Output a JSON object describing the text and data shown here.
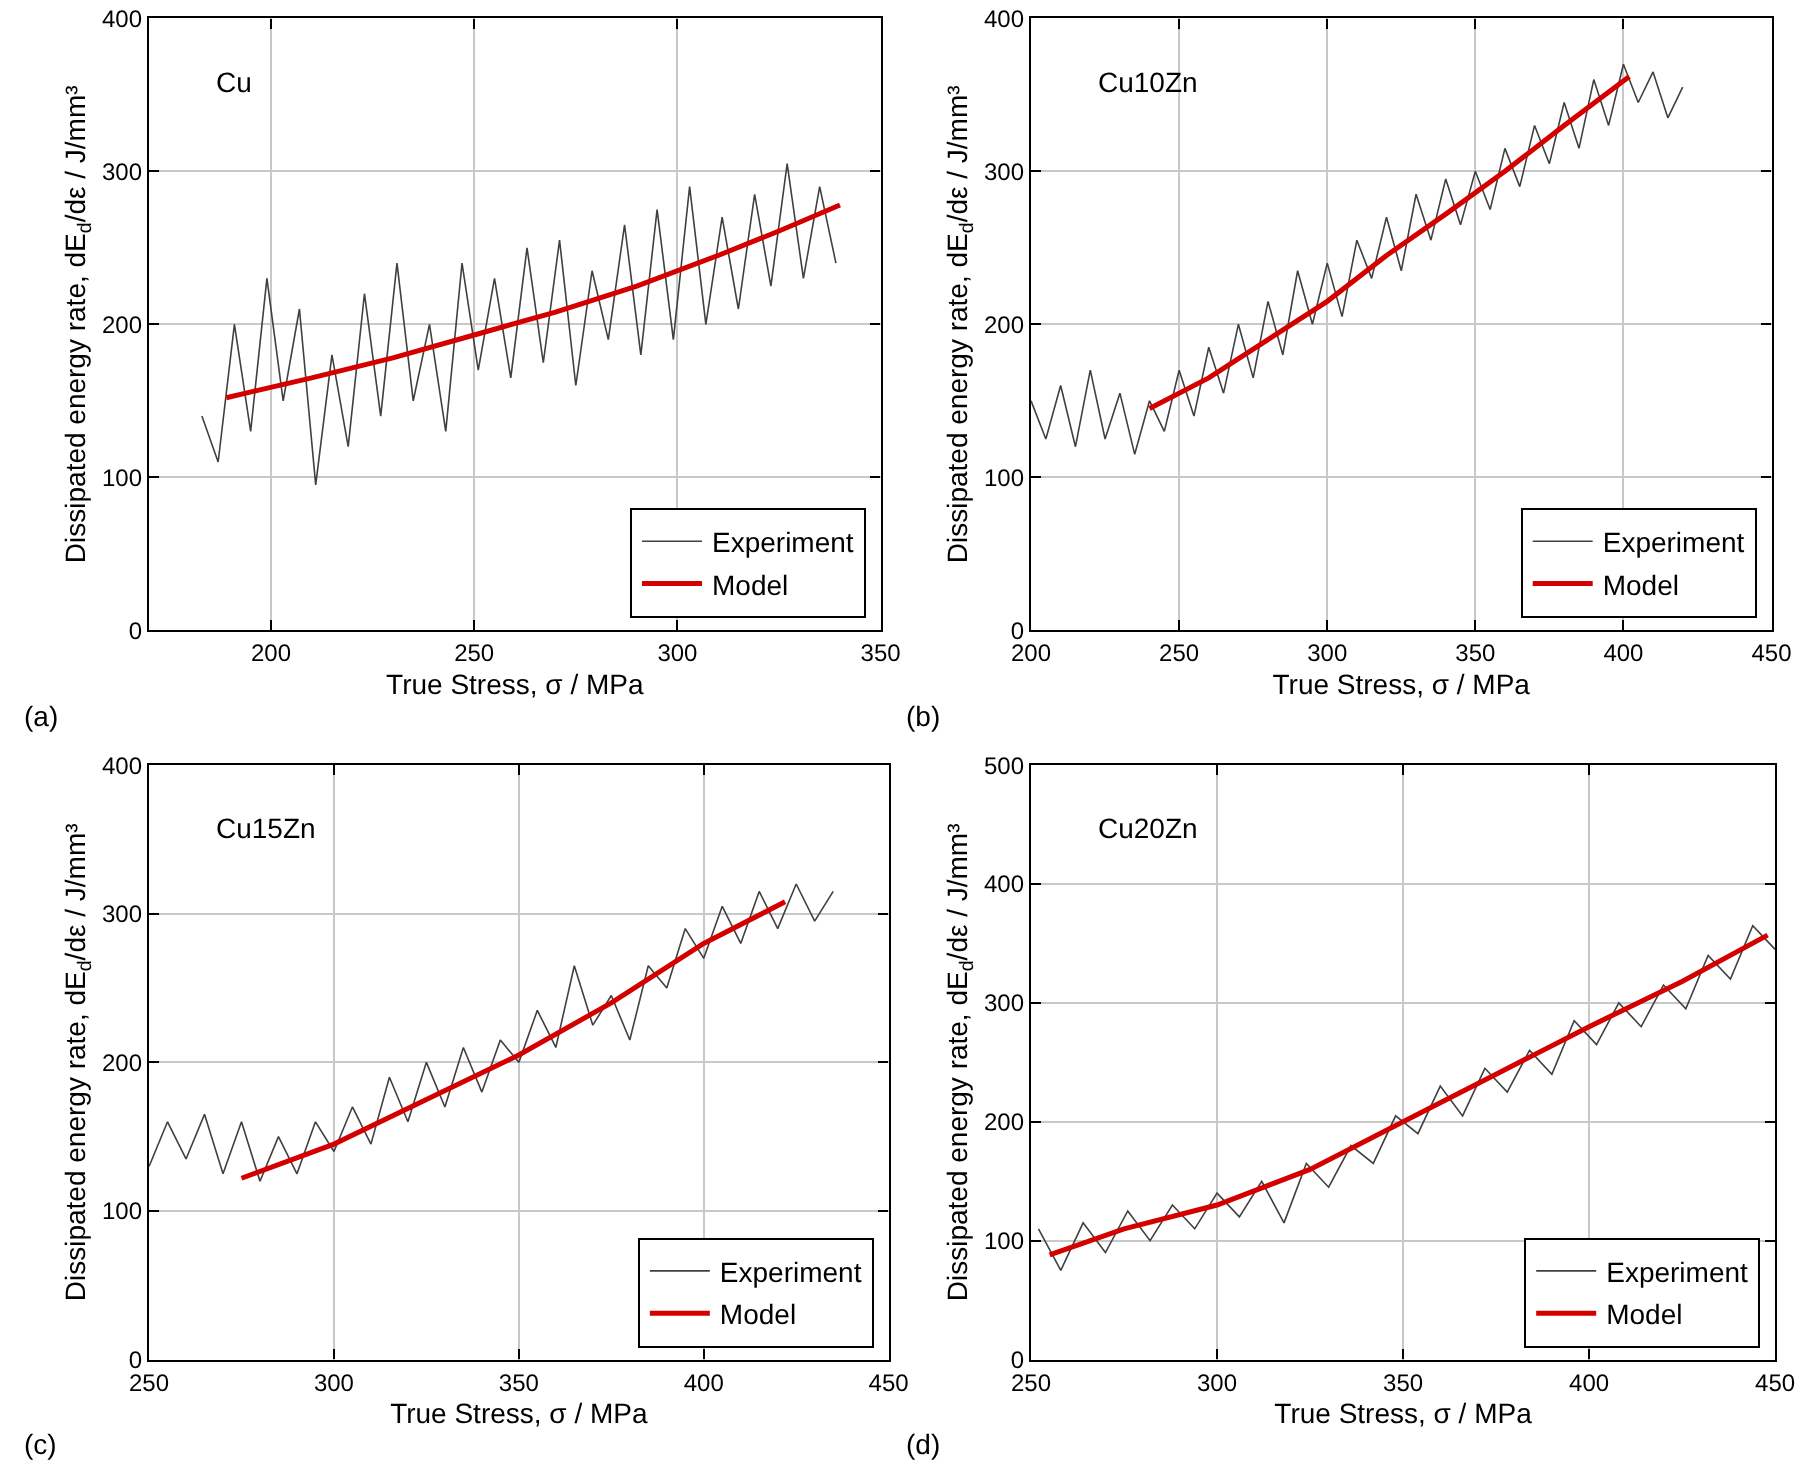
{
  "chart_data": [
    {
      "type": "line",
      "title": "Cu",
      "xlabel": "True Stress, σ / MPa",
      "ylabel": "Dissipated energy rate, dE$_{d}$/dε / J/mm³",
      "annotations": [
        "(a)"
      ],
      "xlim": [
        170,
        350
      ],
      "xticks": [
        200,
        250,
        300,
        350
      ],
      "ylim": [
        0,
        400
      ],
      "yticks": [
        0,
        100,
        200,
        300,
        400
      ],
      "grid": true,
      "legend": "bottom right",
      "series": [
        {
          "name": "Experiment",
          "color": "#404040",
          "x": [
            183,
            187,
            191,
            195,
            199,
            203,
            207,
            211,
            215,
            219,
            223,
            227,
            231,
            235,
            239,
            243,
            247,
            251,
            255,
            259,
            263,
            267,
            271,
            275,
            279,
            283,
            287,
            291,
            295,
            299,
            303,
            307,
            311,
            315,
            319,
            323,
            327,
            331,
            335,
            339
          ],
          "values": [
            140,
            110,
            200,
            130,
            230,
            150,
            210,
            95,
            180,
            120,
            220,
            140,
            240,
            150,
            200,
            130,
            240,
            170,
            230,
            165,
            250,
            175,
            255,
            160,
            235,
            190,
            265,
            180,
            275,
            190,
            290,
            200,
            270,
            210,
            285,
            225,
            305,
            230,
            290,
            240
          ]
        },
        {
          "name": "Model",
          "color": "#d40000",
          "x": [
            189,
            210,
            230,
            250,
            270,
            290,
            310,
            325,
            340
          ],
          "values": [
            152,
            165,
            178,
            193,
            208,
            225,
            245,
            261,
            278
          ]
        }
      ]
    },
    {
      "type": "line",
      "title": "Cu10Zn",
      "xlabel": "True Stress, σ / MPa",
      "ylabel": "Dissipated energy rate, dE$_{d}$/dε / J/mm³",
      "annotations": [
        "(b)"
      ],
      "xlim": [
        200,
        450
      ],
      "xticks": [
        200,
        250,
        300,
        350,
        400,
        450
      ],
      "ylim": [
        0,
        400
      ],
      "yticks": [
        0,
        100,
        200,
        300,
        400
      ],
      "grid": true,
      "legend": "bottom right",
      "series": [
        {
          "name": "Experiment",
          "color": "#404040",
          "x": [
            200,
            205,
            210,
            215,
            220,
            225,
            230,
            235,
            240,
            245,
            250,
            255,
            260,
            265,
            270,
            275,
            280,
            285,
            290,
            295,
            300,
            305,
            310,
            315,
            320,
            325,
            330,
            335,
            340,
            345,
            350,
            355,
            360,
            365,
            370,
            375,
            380,
            385,
            390,
            395,
            400,
            405,
            410,
            415,
            420
          ],
          "values": [
            150,
            125,
            160,
            120,
            170,
            125,
            155,
            115,
            150,
            130,
            170,
            140,
            185,
            155,
            200,
            165,
            215,
            180,
            235,
            200,
            240,
            205,
            255,
            230,
            270,
            235,
            285,
            255,
            295,
            265,
            300,
            275,
            315,
            290,
            330,
            305,
            345,
            315,
            360,
            330,
            370,
            345,
            365,
            335,
            355
          ]
        },
        {
          "name": "Model",
          "color": "#d40000",
          "x": [
            240,
            260,
            280,
            300,
            320,
            340,
            360,
            380,
            402
          ],
          "values": [
            145,
            165,
            190,
            215,
            245,
            272,
            300,
            330,
            362
          ]
        }
      ]
    },
    {
      "type": "line",
      "title": "Cu15Zn",
      "xlabel": "True Stress, σ / MPa",
      "ylabel": "Dissipated energy rate, dE$_{d}$/dε / J/mm³",
      "annotations": [
        "(c)"
      ],
      "xlim": [
        250,
        450
      ],
      "xticks": [
        250,
        300,
        350,
        400,
        450
      ],
      "ylim": [
        0,
        400
      ],
      "yticks": [
        0,
        100,
        200,
        300,
        400
      ],
      "grid": true,
      "legend": "bottom right",
      "series": [
        {
          "name": "Experiment",
          "color": "#404040",
          "x": [
            250,
            255,
            260,
            265,
            270,
            275,
            280,
            285,
            290,
            295,
            300,
            305,
            310,
            315,
            320,
            325,
            330,
            335,
            340,
            345,
            350,
            355,
            360,
            365,
            370,
            375,
            380,
            385,
            390,
            395,
            400,
            405,
            410,
            415,
            420,
            425,
            430,
            435
          ],
          "values": [
            130,
            160,
            135,
            165,
            125,
            160,
            120,
            150,
            125,
            160,
            140,
            170,
            145,
            190,
            160,
            200,
            170,
            210,
            180,
            215,
            200,
            235,
            210,
            265,
            225,
            245,
            215,
            265,
            250,
            290,
            270,
            305,
            280,
            315,
            290,
            320,
            295,
            315
          ]
        },
        {
          "name": "Model",
          "color": "#d40000",
          "x": [
            275,
            300,
            325,
            350,
            375,
            400,
            422
          ],
          "values": [
            122,
            145,
            175,
            205,
            240,
            280,
            308
          ]
        }
      ]
    },
    {
      "type": "line",
      "title": "Cu20Zn",
      "xlabel": "True Stress, σ / MPa",
      "ylabel": "Dissipated energy rate, dE$_{d}$/dε / J/mm³",
      "annotations": [
        "(d)"
      ],
      "xlim": [
        250,
        450
      ],
      "xticks": [
        250,
        300,
        350,
        400,
        450
      ],
      "ylim": [
        0,
        500
      ],
      "yticks": [
        0,
        100,
        200,
        300,
        400,
        500
      ],
      "grid": true,
      "legend": "bottom right",
      "series": [
        {
          "name": "Experiment",
          "color": "#404040",
          "x": [
            252,
            258,
            264,
            270,
            276,
            282,
            288,
            294,
            300,
            306,
            312,
            318,
            324,
            330,
            336,
            342,
            348,
            354,
            360,
            366,
            372,
            378,
            384,
            390,
            396,
            402,
            408,
            414,
            420,
            426,
            432,
            438,
            444,
            450
          ],
          "values": [
            110,
            75,
            115,
            90,
            125,
            100,
            130,
            110,
            140,
            120,
            150,
            115,
            165,
            145,
            180,
            165,
            205,
            190,
            230,
            205,
            245,
            225,
            260,
            240,
            285,
            265,
            300,
            280,
            315,
            295,
            340,
            320,
            365,
            345
          ]
        },
        {
          "name": "Model",
          "color": "#d40000",
          "x": [
            255,
            275,
            300,
            325,
            350,
            375,
            400,
            425,
            448
          ],
          "values": [
            88,
            110,
            130,
            160,
            200,
            240,
            280,
            318,
            357
          ]
        }
      ]
    }
  ]
}
